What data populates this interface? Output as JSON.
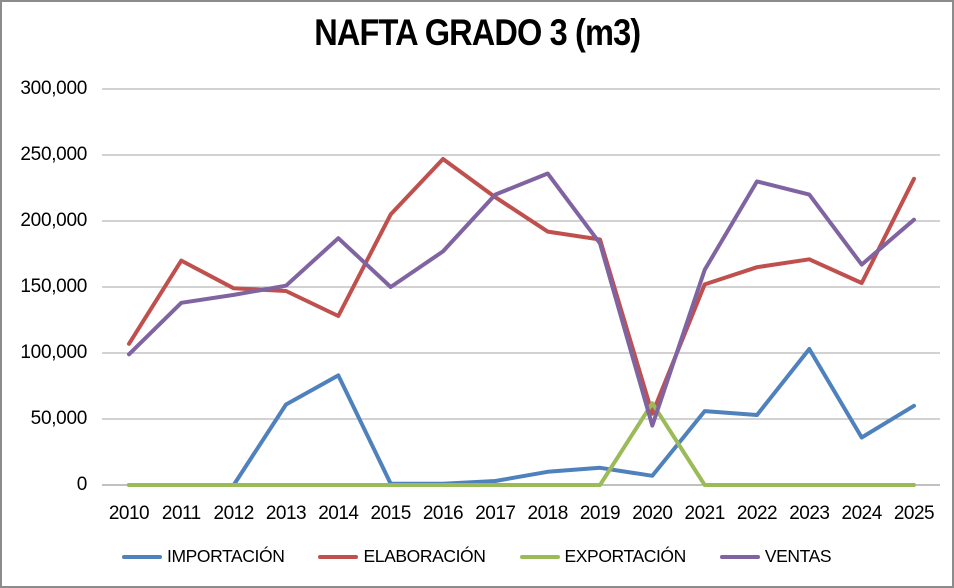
{
  "title": "NAFTA GRADO 3 (m3)",
  "chart_data": {
    "type": "line",
    "title": "NAFTA GRADO 3 (m3)",
    "unit": "m3",
    "categories": [
      "2010",
      "2011",
      "2012",
      "2013",
      "2014",
      "2015",
      "2016",
      "2017",
      "2018",
      "2019",
      "2020",
      "2021",
      "2022",
      "2023",
      "2024",
      "2025"
    ],
    "series": [
      {
        "name": "IMPORTACIÓN",
        "color": "#4F81BD",
        "values": [
          0,
          0,
          0,
          61000,
          83000,
          1000,
          1000,
          3000,
          10000,
          13000,
          7000,
          56000,
          53000,
          103000,
          36000,
          60000
        ]
      },
      {
        "name": "ELABORACIÓN",
        "color": "#C0504D",
        "values": [
          107000,
          170000,
          149000,
          147000,
          128000,
          205000,
          247000,
          218000,
          192000,
          186000,
          54000,
          152000,
          165000,
          171000,
          153000,
          232000
        ]
      },
      {
        "name": "EXPORTACIÓN",
        "color": "#9BBB59",
        "values": [
          0,
          0,
          0,
          0,
          0,
          0,
          0,
          0,
          0,
          0,
          62000,
          0,
          0,
          0,
          0,
          0
        ]
      },
      {
        "name": "VENTAS",
        "color": "#8064A2",
        "values": [
          99000,
          138000,
          144000,
          151000,
          187000,
          150000,
          177000,
          220000,
          236000,
          183000,
          45000,
          163000,
          230000,
          220000,
          167000,
          201000
        ]
      }
    ],
    "ylim": [
      0,
      300000
    ],
    "y_tick_step": 50000,
    "y_tick_labels": [
      "0",
      "50,000",
      "100,000",
      "150,000",
      "200,000",
      "250,000",
      "300,000"
    ],
    "grid": true,
    "gridline_color": "#A6A6A6",
    "axis_line_color": "#808080",
    "legend_position": "bottom",
    "xlabel": "",
    "ylabel": ""
  }
}
